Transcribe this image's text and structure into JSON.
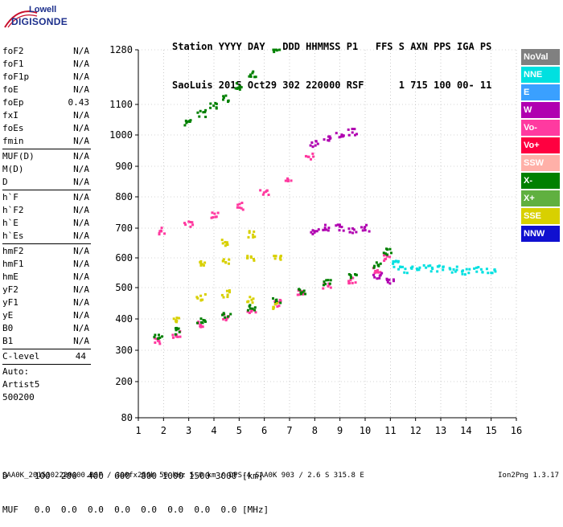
{
  "logo": {
    "line1": "Lowell",
    "line2": "DIGISONDE"
  },
  "header": {
    "line1": "Station YYYY DAY   DDD HHMMSS P1   FFS S AXN PPS IGA PS",
    "line2": "SaoLuis 2015 Oct29 302 220000 RSF      1 715 100 00- 11"
  },
  "params": {
    "group1": [
      {
        "name": "foF2",
        "value": "N/A"
      },
      {
        "name": "foF1",
        "value": "N/A"
      },
      {
        "name": "foF1p",
        "value": "N/A"
      },
      {
        "name": "foE",
        "value": "N/A"
      },
      {
        "name": "foEp",
        "value": "0.43"
      },
      {
        "name": "fxI",
        "value": "N/A"
      },
      {
        "name": "foEs",
        "value": "N/A"
      },
      {
        "name": "fmin",
        "value": "N/A"
      }
    ],
    "group2": [
      {
        "name": "MUF(D)",
        "value": "N/A"
      },
      {
        "name": "M(D)",
        "value": "N/A"
      },
      {
        "name": "D",
        "value": "N/A"
      }
    ],
    "group3": [
      {
        "name": "h`F",
        "value": "N/A"
      },
      {
        "name": "h`F2",
        "value": "N/A"
      },
      {
        "name": "h`E",
        "value": "N/A"
      },
      {
        "name": "h`Es",
        "value": "N/A"
      }
    ],
    "group4": [
      {
        "name": "hmF2",
        "value": "N/A"
      },
      {
        "name": "hmF1",
        "value": "N/A"
      },
      {
        "name": "hmE",
        "value": "N/A"
      },
      {
        "name": "yF2",
        "value": "N/A"
      },
      {
        "name": "yF1",
        "value": "N/A"
      },
      {
        "name": "yE",
        "value": "N/A"
      },
      {
        "name": "B0",
        "value": "N/A"
      },
      {
        "name": "B1",
        "value": "N/A"
      }
    ],
    "c_level": {
      "name": "C-level",
      "value": "44"
    },
    "auto": [
      "Auto:",
      "Artist5",
      "500200"
    ]
  },
  "legend": [
    {
      "label": "NoVal",
      "color": "#808080"
    },
    {
      "label": "NNE",
      "color": "#00e0e0"
    },
    {
      "label": "E",
      "color": "#3aa0ff"
    },
    {
      "label": "W",
      "color": "#b000b0"
    },
    {
      "label": "Vo-",
      "color": "#ff3aa0"
    },
    {
      "label": "Vo+",
      "color": "#ff0040"
    },
    {
      "label": "SSW",
      "color": "#ffb0a8"
    },
    {
      "label": "X-",
      "color": "#008000"
    },
    {
      "label": "X+",
      "color": "#60b040"
    },
    {
      "label": "SSE",
      "color": "#d8d000"
    },
    {
      "label": "NNW",
      "color": "#1010d0"
    }
  ],
  "chart_data": {
    "type": "scatter",
    "xlabel": "",
    "ylabel": "",
    "xlim": [
      1,
      16
    ],
    "ylim": [
      80,
      1280
    ],
    "x_ticks": [
      1,
      2,
      3,
      4,
      5,
      6,
      7,
      8,
      9,
      10,
      11,
      12,
      13,
      14,
      15,
      16
    ],
    "y_ticks": [
      80,
      200,
      300,
      400,
      500,
      600,
      700,
      800,
      900,
      1000,
      1100,
      1280
    ],
    "series": [
      {
        "color": "#ff3aa0",
        "points": [
          [
            1.8,
            330
          ],
          [
            2.5,
            350
          ],
          [
            3.5,
            380
          ],
          [
            4.5,
            405
          ],
          [
            5.5,
            425
          ],
          [
            6.5,
            450
          ],
          [
            7.5,
            480
          ],
          [
            8.5,
            505
          ],
          [
            9.5,
            525
          ],
          [
            10.5,
            560
          ],
          [
            10.9,
            600
          ]
        ]
      },
      {
        "color": "#008000",
        "points": [
          [
            1.8,
            340
          ],
          [
            2.5,
            360
          ],
          [
            3.5,
            390
          ],
          [
            4.5,
            415
          ],
          [
            5.5,
            435
          ],
          [
            6.5,
            460
          ],
          [
            7.5,
            490
          ],
          [
            8.5,
            515
          ],
          [
            9.5,
            540
          ],
          [
            10.5,
            575
          ],
          [
            10.9,
            620
          ]
        ]
      },
      {
        "color": "#d8d000",
        "points": [
          [
            2.5,
            400
          ],
          [
            3.5,
            470
          ],
          [
            4.5,
            480
          ],
          [
            5.5,
            460
          ],
          [
            6.5,
            440
          ],
          [
            3.5,
            580
          ],
          [
            4.5,
            590
          ],
          [
            5.5,
            600
          ],
          [
            6.5,
            600
          ],
          [
            4.5,
            650
          ],
          [
            5.5,
            680
          ]
        ]
      },
      {
        "color": "#ff3aa0",
        "points": [
          [
            2,
            690
          ],
          [
            3,
            715
          ],
          [
            4,
            740
          ],
          [
            5,
            770
          ],
          [
            6,
            815
          ],
          [
            7,
            860
          ],
          [
            7.8,
            930
          ]
        ]
      },
      {
        "color": "#008000",
        "points": [
          [
            3,
            1040
          ],
          [
            3.5,
            1070
          ],
          [
            4,
            1095
          ],
          [
            4.5,
            1120
          ],
          [
            5,
            1160
          ],
          [
            5.5,
            1200
          ],
          [
            6.5,
            1280
          ]
        ]
      },
      {
        "color": "#b000b0",
        "points": [
          [
            8,
            970
          ],
          [
            8.5,
            990
          ],
          [
            9,
            1000
          ],
          [
            9.5,
            1010
          ],
          [
            8,
            690
          ],
          [
            8.5,
            700
          ],
          [
            9,
            700
          ],
          [
            9.5,
            690
          ],
          [
            10,
            700
          ],
          [
            10.5,
            540
          ],
          [
            11,
            520
          ]
        ]
      },
      {
        "color": "#00e0e0",
        "points": [
          [
            11.2,
            580
          ],
          [
            11.5,
            560
          ],
          [
            12,
            570
          ],
          [
            12.5,
            565
          ],
          [
            13,
            565
          ],
          [
            13.5,
            560
          ],
          [
            14,
            555
          ],
          [
            14.5,
            560
          ],
          [
            15,
            555
          ]
        ]
      }
    ]
  },
  "footer": {
    "d_line": "D     100  200  400  600  800 1000 1500 3000 [km]",
    "muf_line": "MUF   0.0  0.0  0.0  0.0  0.0  0.0  0.0  0.0 [MHz]",
    "file_line": "SAA0K_2015302220000.RSF / 300fx256h 50 kHz 5.0 km / DPS-4 SAA0K 903 / 2.6 S 315.8 E",
    "version": "Ion2Png 1.3.17"
  }
}
